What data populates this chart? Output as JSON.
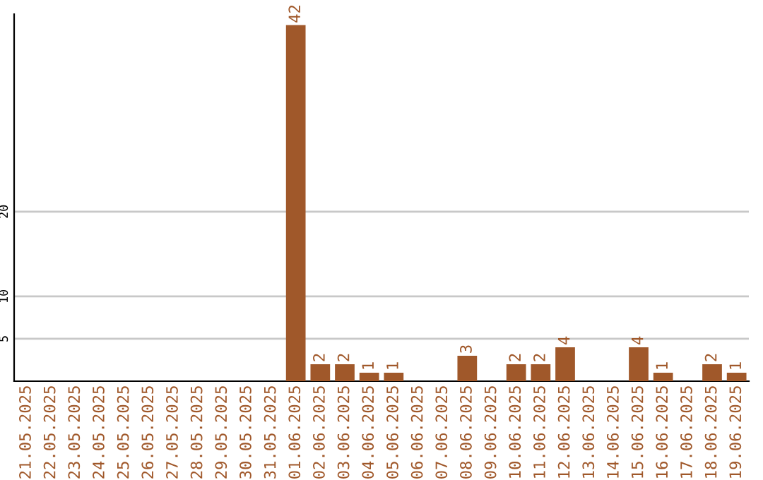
{
  "chart_data": {
    "type": "bar",
    "categories": [
      "21.05.2025",
      "22.05.2025",
      "23.05.2025",
      "24.05.2025",
      "25.05.2025",
      "26.05.2025",
      "27.05.2025",
      "28.05.2025",
      "29.05.2025",
      "30.05.2025",
      "31.05.2025",
      "01.06.2025",
      "02.06.2025",
      "03.06.2025",
      "04.06.2025",
      "05.06.2025",
      "06.06.2025",
      "07.06.2025",
      "08.06.2025",
      "09.06.2025",
      "10.06.2025",
      "11.06.2025",
      "12.06.2025",
      "13.06.2025",
      "14.06.2025",
      "15.06.2025",
      "16.06.2025",
      "17.06.2025",
      "18.06.2025",
      "19.06.2025"
    ],
    "values": [
      0,
      0,
      0,
      0,
      0,
      0,
      0,
      0,
      0,
      0,
      0,
      42,
      2,
      2,
      1,
      1,
      0,
      0,
      3,
      0,
      2,
      2,
      4,
      0,
      0,
      4,
      1,
      0,
      2,
      1
    ],
    "value_labels": [
      null,
      null,
      null,
      null,
      null,
      null,
      null,
      null,
      null,
      null,
      null,
      "42",
      "2",
      "2",
      "1",
      "1",
      null,
      null,
      "3",
      null,
      "2",
      "2",
      "4",
      null,
      null,
      "4",
      "1",
      null,
      "2",
      "1"
    ],
    "color": "#a0582a",
    "ylim": [
      0,
      43.3
    ],
    "yticks": [
      5,
      10,
      20
    ],
    "grid": "y"
  }
}
